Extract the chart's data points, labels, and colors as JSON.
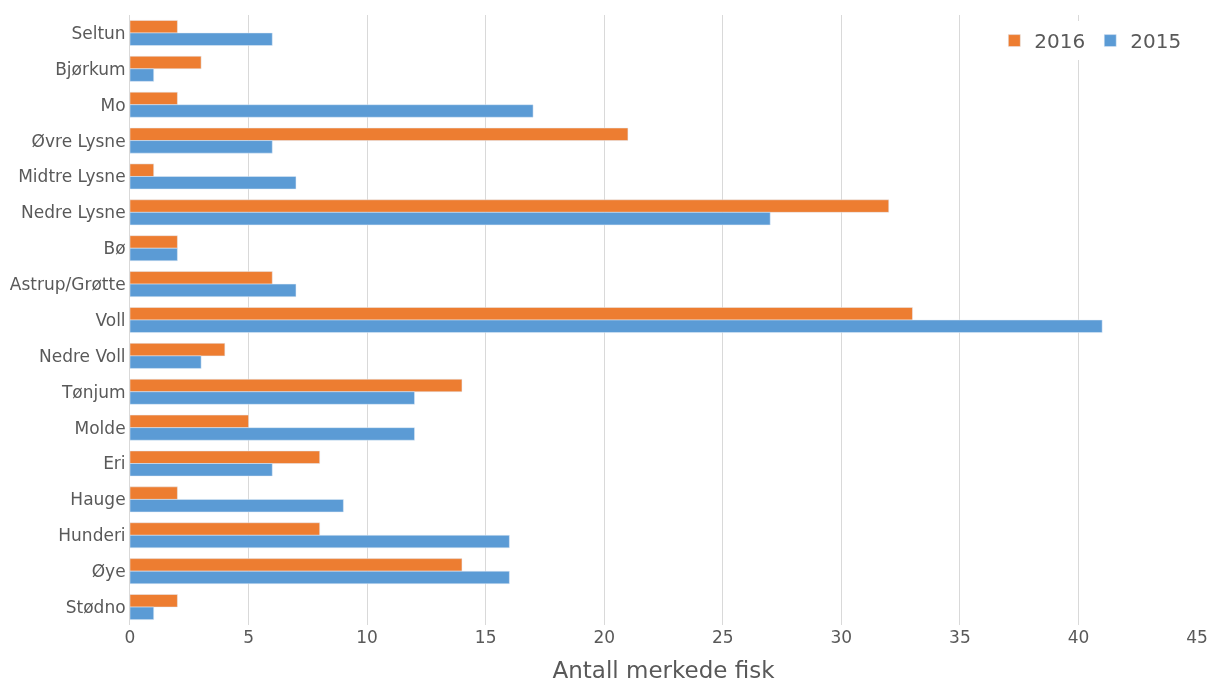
{
  "chart_data": {
    "type": "bar",
    "orientation": "horizontal",
    "xlabel": "Antall merkede fisk",
    "categories": [
      "Seltun",
      "Bjørkum",
      "Mo",
      "Øvre Lysne",
      "Midtre Lysne",
      "Nedre Lysne",
      "Bø",
      "Astrup/Grøtte",
      "Voll",
      "Nedre Voll",
      "Tønjum",
      "Molde",
      "Eri",
      "Hauge",
      "Hunderi",
      "Øye",
      "Stødno"
    ],
    "series": [
      {
        "name": "2016",
        "color": "#ed7d31",
        "values": [
          2,
          3,
          2,
          21,
          1,
          32,
          2,
          6,
          33,
          4,
          14,
          5,
          8,
          2,
          8,
          14,
          2
        ]
      },
      {
        "name": "2015",
        "color": "#5b9bd5",
        "values": [
          6,
          1,
          17,
          6,
          7,
          27,
          2,
          7,
          41,
          3,
          12,
          12,
          6,
          9,
          16,
          16,
          1
        ]
      }
    ],
    "xlim": [
      0,
      45
    ],
    "xticks": [
      0,
      5,
      10,
      15,
      20,
      25,
      30,
      35,
      40,
      45
    ],
    "grid": "x",
    "legend": "top right"
  }
}
